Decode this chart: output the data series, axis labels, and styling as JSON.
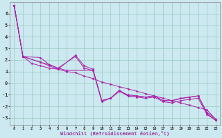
{
  "title": "",
  "xlabel": "Windchill (Refroidissement éolien,°C)",
  "ylabel": "",
  "bg_color": "#cce8f0",
  "grid_color": "#99ccc0",
  "line_color": "#aa22aa",
  "xlim": [
    -0.5,
    23.5
  ],
  "ylim": [
    -3.6,
    7.0
  ],
  "yticks": [
    -3,
    -2,
    -1,
    0,
    1,
    2,
    3,
    4,
    5,
    6
  ],
  "xticks": [
    0,
    1,
    2,
    3,
    4,
    5,
    6,
    7,
    8,
    9,
    10,
    11,
    12,
    13,
    14,
    15,
    16,
    17,
    18,
    19,
    20,
    21,
    22,
    23
  ],
  "line1_x": [
    0,
    1,
    3,
    4,
    5,
    7,
    8,
    9,
    10,
    11,
    12,
    13,
    14,
    15,
    16,
    17,
    18,
    19,
    20,
    21,
    22,
    23
  ],
  "line1_y": [
    6.7,
    2.3,
    2.2,
    1.6,
    1.3,
    2.3,
    1.3,
    1.1,
    -1.6,
    -1.3,
    -0.6,
    -1.1,
    -1.1,
    -1.2,
    -1.1,
    -1.5,
    -1.5,
    -1.3,
    -1.2,
    -1.1,
    -2.6,
    -3.2
  ],
  "line2_x": [
    0,
    1,
    3,
    4,
    5,
    7,
    8,
    9,
    10,
    11,
    12,
    13,
    14,
    15,
    16,
    17,
    18,
    19,
    20,
    21,
    22,
    23
  ],
  "line2_y": [
    6.7,
    2.3,
    1.8,
    1.5,
    1.2,
    2.4,
    1.5,
    1.2,
    -1.5,
    -1.3,
    -0.7,
    -1.1,
    -1.2,
    -1.3,
    -1.2,
    -1.6,
    -1.7,
    -1.5,
    -1.4,
    -1.3,
    -2.7,
    -3.2
  ],
  "line3_x": [
    0,
    1,
    2,
    3,
    4,
    5,
    6,
    7,
    8,
    9,
    10,
    11,
    12,
    13,
    14,
    15,
    16,
    17,
    18,
    19,
    20,
    21,
    22,
    23
  ],
  "line3_y": [
    6.7,
    2.3,
    1.7,
    1.5,
    1.3,
    1.2,
    1.0,
    0.9,
    0.6,
    0.4,
    0.1,
    -0.1,
    -0.3,
    -0.5,
    -0.7,
    -0.9,
    -1.1,
    -1.3,
    -1.5,
    -1.7,
    -1.9,
    -2.1,
    -2.3,
    -3.1
  ],
  "line4_x": [
    0,
    1,
    3,
    4,
    5,
    6,
    9,
    10,
    11,
    12,
    13,
    14,
    15,
    16,
    17,
    18,
    20,
    21,
    22,
    23
  ],
  "line4_y": [
    6.7,
    2.3,
    1.8,
    1.6,
    1.3,
    1.1,
    1.1,
    -1.5,
    -1.3,
    -0.7,
    -1.0,
    -1.1,
    -1.2,
    -1.1,
    -1.5,
    -1.5,
    -1.2,
    -1.1,
    -2.5,
    -3.1
  ],
  "figsize": [
    3.2,
    2.0
  ],
  "dpi": 100
}
